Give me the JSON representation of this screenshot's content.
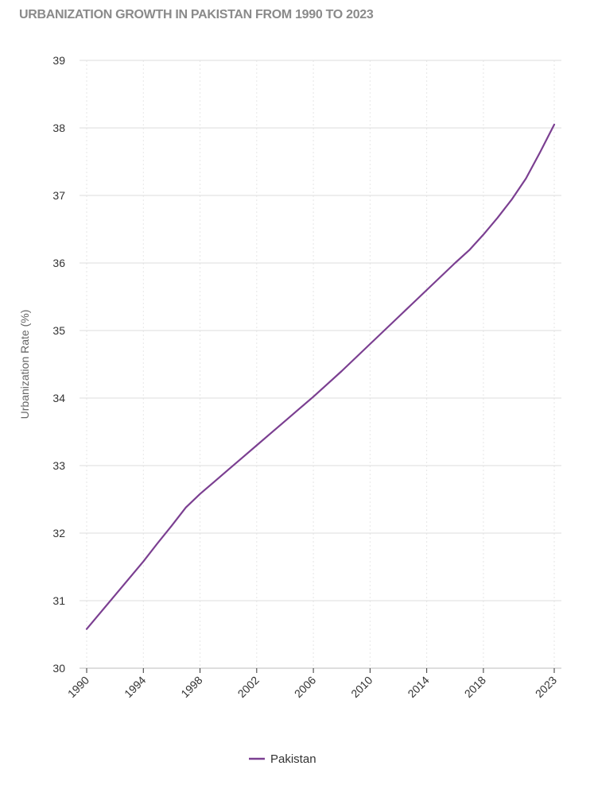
{
  "chart_data": {
    "type": "line",
    "title": "URBANIZATION GROWTH IN PAKISTAN FROM 1990 TO 2023",
    "ylabel": "Urbanization Rate (%)",
    "xlabel": "",
    "ylim": [
      30,
      39
    ],
    "yticks": [
      30,
      31,
      32,
      33,
      34,
      35,
      36,
      37,
      38,
      39
    ],
    "xlim": [
      1990,
      2023
    ],
    "xticks": [
      1990,
      1994,
      1998,
      2002,
      2006,
      2010,
      2014,
      2018,
      2023
    ],
    "grid": true,
    "legend_position": "bottom-center",
    "series": [
      {
        "name": "Pakistan",
        "color": "#7b3f91",
        "x": [
          1990,
          1991,
          1992,
          1993,
          1994,
          1995,
          1996,
          1997,
          1998,
          1999,
          2000,
          2001,
          2002,
          2003,
          2004,
          2005,
          2006,
          2007,
          2008,
          2009,
          2010,
          2011,
          2012,
          2013,
          2014,
          2015,
          2016,
          2017,
          2018,
          2019,
          2020,
          2021,
          2022,
          2023
        ],
        "values": [
          30.58,
          30.83,
          31.08,
          31.33,
          31.58,
          31.85,
          32.11,
          32.38,
          32.58,
          32.76,
          32.94,
          33.12,
          33.3,
          33.48,
          33.66,
          33.84,
          34.02,
          34.21,
          34.4,
          34.6,
          34.8,
          35.0,
          35.2,
          35.4,
          35.6,
          35.8,
          36.0,
          36.19,
          36.42,
          36.67,
          36.94,
          37.25,
          37.64,
          38.05
        ]
      }
    ]
  }
}
